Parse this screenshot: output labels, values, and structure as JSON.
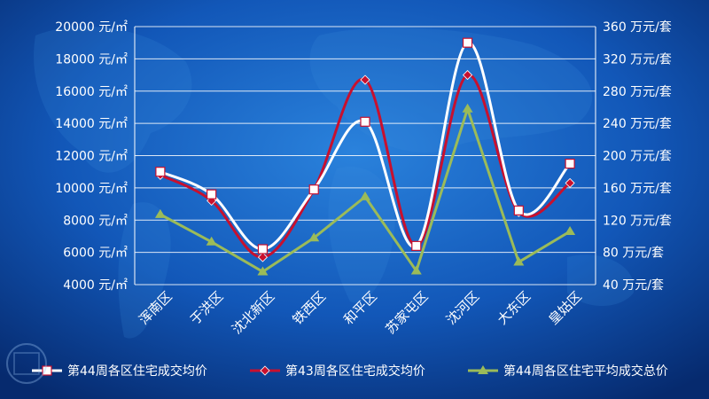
{
  "chart_data": {
    "type": "line",
    "categories": [
      "浑南区",
      "于洪区",
      "沈北新区",
      "铁西区",
      "和平区",
      "苏家屯区",
      "沈河区",
      "大东区",
      "皇姑区"
    ],
    "y_left": {
      "ticks": [
        "4000 元/㎡",
        "6000 元/㎡",
        "8000 元/㎡",
        "10000 元/㎡",
        "12000 元/㎡",
        "14000 元/㎡",
        "16000 元/㎡",
        "18000 元/㎡",
        "20000 元/㎡"
      ],
      "range": [
        4000,
        20000
      ]
    },
    "y_right": {
      "ticks": [
        "40 万元/套",
        "80 万元/套",
        "120 万元/套",
        "160 万元/套",
        "200 万元/套",
        "240 万元/套",
        "280 万元/套",
        "320 万元/套",
        "360 万元/套"
      ],
      "range": [
        40,
        360
      ]
    },
    "grid": true,
    "legend_position": "bottom",
    "series": [
      {
        "name": "第44周各区住宅成交均价",
        "axis": "left",
        "color": "#ffffff",
        "marker": "square",
        "values": [
          11000,
          9600,
          6200,
          9900,
          14100,
          6400,
          19000,
          8600,
          11500
        ]
      },
      {
        "name": "第43周各区住宅成交均价",
        "axis": "left",
        "color": "#c8102e",
        "marker": "diamond",
        "values": [
          10800,
          9200,
          5700,
          9900,
          16700,
          6400,
          17000,
          8500,
          10300
        ]
      },
      {
        "name": "第44周各区住宅平均成交总价",
        "axis": "right",
        "color": "#9bbb59",
        "marker": "triangle",
        "values": [
          127,
          93,
          56,
          98,
          149,
          57,
          258,
          68,
          106
        ]
      }
    ]
  }
}
